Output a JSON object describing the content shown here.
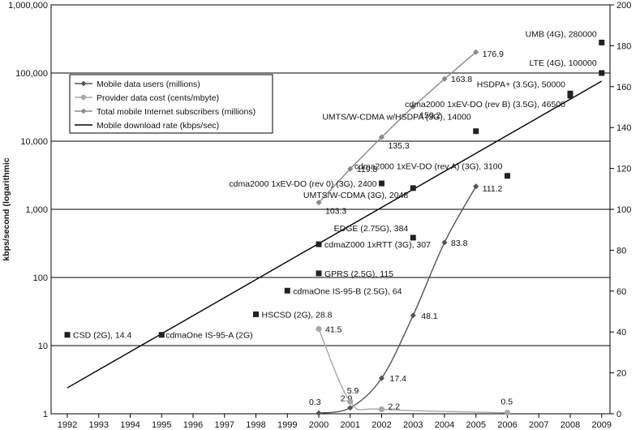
{
  "chart_data": {
    "type": "line",
    "ylabel_left": "kbps/second (logarithmic",
    "x_ticks": [
      "1992",
      "1993",
      "1994",
      "1995",
      "1996",
      "1997",
      "1998",
      "1999",
      "2000",
      "2001",
      "2002",
      "2003",
      "2004",
      "2005",
      "2006",
      "2007",
      "2008",
      "2009"
    ],
    "left_axis": {
      "scale": "log",
      "range": [
        1,
        1000000
      ],
      "ticks": [
        {
          "value": 1,
          "label": "1"
        },
        {
          "value": 10,
          "label": "10"
        },
        {
          "value": 100,
          "label": "100"
        },
        {
          "value": 1000,
          "label": "1,000"
        },
        {
          "value": 10000,
          "label": "10,000"
        },
        {
          "value": 100000,
          "label": "100,000"
        },
        {
          "value": 1000000,
          "label": "1,000,000"
        }
      ]
    },
    "right_axis": {
      "scale": "linear",
      "range": [
        0,
        200
      ],
      "ticks": [
        "0",
        "20",
        "40",
        "60",
        "80",
        "100",
        "120",
        "140",
        "160",
        "180",
        "200"
      ]
    },
    "grid": "horizontal",
    "legend": {
      "placement": "upper-left",
      "entries": [
        {
          "label": "Mobile data users (millions)",
          "series": "mobile_users"
        },
        {
          "label": "Provider data cost (cents/mbyte)",
          "series": "data_cost"
        },
        {
          "label": "Total mobile Internet subscribers (millions)",
          "series": "internet_subs"
        },
        {
          "label": "Mobile download rate (kbps/sec)",
          "series": "download_rate"
        }
      ]
    },
    "series": [
      {
        "key": "mobile_users",
        "axis": "right",
        "color": "#555555",
        "marker": "diamond",
        "points": [
          {
            "x": 2000,
            "y": 0.3,
            "label": "0.3"
          },
          {
            "x": 2001,
            "y": 2.9,
            "label": "2.9"
          },
          {
            "x": 2002,
            "y": 17.4,
            "label": "17.4"
          },
          {
            "x": 2003,
            "y": 48.1,
            "label": "48.1"
          },
          {
            "x": 2004,
            "y": 83.8,
            "label": "83.8"
          },
          {
            "x": 2005,
            "y": 111.2,
            "label": "111.2"
          }
        ]
      },
      {
        "key": "data_cost",
        "axis": "right",
        "color": "#a8a8a8",
        "marker": "circle",
        "points": [
          {
            "x": 2000,
            "y": 41.5,
            "label": "41.5"
          },
          {
            "x": 2001,
            "y": 5.9,
            "label": "5.9"
          },
          {
            "x": 2002,
            "y": 2.2,
            "label": "2.2"
          },
          {
            "x": 2006,
            "y": 0.5,
            "label": "0.5"
          }
        ]
      },
      {
        "key": "internet_subs",
        "axis": "right",
        "color": "#8a8a8a",
        "marker": "diamond",
        "points": [
          {
            "x": 2000,
            "y": 103.3,
            "label": "103.3"
          },
          {
            "x": 2001,
            "y": 119.8,
            "label": "119.8"
          },
          {
            "x": 2002,
            "y": 135.3,
            "label": "135.3"
          },
          {
            "x": 2003,
            "y": 150.2,
            "label": "150.2"
          },
          {
            "x": 2004,
            "y": 163.8,
            "label": "163.8"
          },
          {
            "x": 2005,
            "y": 176.9,
            "label": "176.9"
          }
        ]
      },
      {
        "key": "download_rate",
        "axis": "left",
        "color": "#000000",
        "marker": "none",
        "trend": {
          "x_start": 1992,
          "y_start": 2.4,
          "x_end": 2009,
          "y_end": 76000
        }
      }
    ],
    "technologies": [
      {
        "label": "CSD (2G), 14.4",
        "x": 1992,
        "y": 14.4
      },
      {
        "label": "cdmaOne IS-95-A (2G)",
        "x": 1995,
        "y": 14.4
      },
      {
        "label": "HSCSD (2G), 28.8",
        "x": 1998,
        "y": 28.8
      },
      {
        "label": "cdmaOne IS-95-B (2.5G), 64",
        "x": 1999,
        "y": 64
      },
      {
        "label": "GPRS (2.5G), 115",
        "x": 2000,
        "y": 115
      },
      {
        "label": "cdmaZ000 1xRTT (3G), 307",
        "x": 2000,
        "y": 307
      },
      {
        "label": "EDGE (2.75G), 384",
        "x": 2003,
        "y": 384
      },
      {
        "label": "UMTS/W-CDMA (3G), 2048",
        "x": 2003,
        "y": 2048
      },
      {
        "label": "cdma2000 1xEV-DO (rev 0) (3G), 2400",
        "x": 2002,
        "y": 2400
      },
      {
        "label": "cdma2000 1xEV-DO (rev A) (3G), 3100",
        "x": 2006,
        "y": 3100
      },
      {
        "label": "UMTS/W-CDMA w/HSDPA (3G), 14000",
        "x": 2005,
        "y": 14000
      },
      {
        "label": "cdma2000 1xEV-DO (rev B) (3.5G), 46500",
        "x": 2008,
        "y": 46500
      },
      {
        "label": "HSDPA+ (3.5G), 50000",
        "x": 2008,
        "y": 50000
      },
      {
        "label": "LTE (4G), 100000",
        "x": 2009,
        "y": 100000
      },
      {
        "label": "UMB (4G), 280000",
        "x": 2009,
        "y": 280000
      }
    ]
  }
}
